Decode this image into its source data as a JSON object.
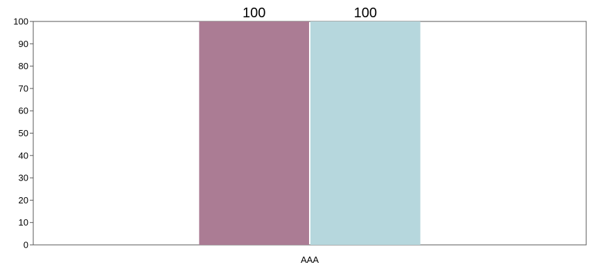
{
  "chart_data": {
    "type": "bar",
    "categories": [
      "AAA"
    ],
    "series": [
      {
        "values": [
          100
        ],
        "color": "#ab7c94"
      },
      {
        "values": [
          100
        ],
        "color": "#b6d7dd"
      }
    ],
    "ylim": [
      0,
      100
    ],
    "yticks": [
      0,
      10,
      20,
      30,
      40,
      50,
      60,
      70,
      80,
      90,
      100
    ],
    "ytick_labels": [
      "0",
      "10",
      "20",
      "30",
      "40",
      "50",
      "60",
      "70",
      "80",
      "90",
      "100"
    ],
    "data_labels": [
      "100",
      "100"
    ],
    "grid": false,
    "legend": "none"
  }
}
